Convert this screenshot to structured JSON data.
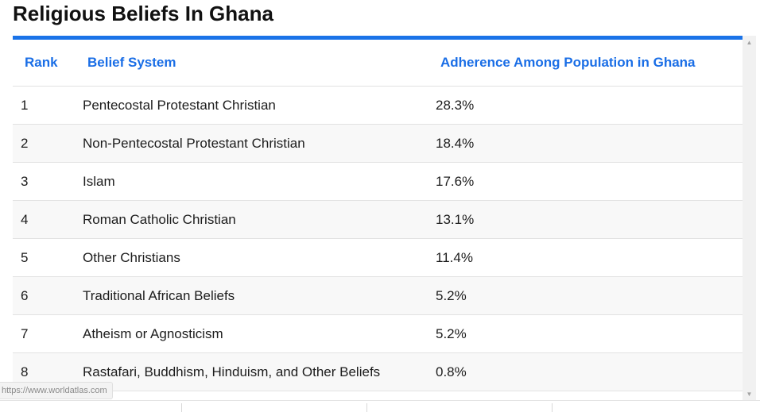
{
  "page": {
    "title": "Religious Beliefs In Ghana"
  },
  "table": {
    "headers": {
      "rank": "Rank",
      "belief": "Belief System",
      "adherence": "Adherence Among Population in Ghana"
    },
    "rows": [
      {
        "rank": "1",
        "belief": "Pentecostal Protestant Christian",
        "adherence": "28.3%"
      },
      {
        "rank": "2",
        "belief": "Non-Pentecostal Protestant Christian",
        "adherence": "18.4%"
      },
      {
        "rank": "3",
        "belief": "Islam",
        "adherence": "17.6%"
      },
      {
        "rank": "4",
        "belief": "Roman Catholic Christian",
        "adherence": "13.1%"
      },
      {
        "rank": "5",
        "belief": "Other Christians",
        "adherence": "11.4%"
      },
      {
        "rank": "6",
        "belief": "Traditional African Beliefs",
        "adherence": "5.2%"
      },
      {
        "rank": "7",
        "belief": "Atheism or Agnosticism",
        "adherence": "5.2%"
      },
      {
        "rank": "8",
        "belief": "Rastafari, Buddhism, Hinduism, and Other Beliefs",
        "adherence": "0.8%"
      }
    ]
  },
  "status_bar": {
    "url": "https://www.worldatlas.com"
  },
  "scrollbar": {
    "up_icon": "▲",
    "down_icon": "▼"
  },
  "colors": {
    "accent": "#1a73e8",
    "header_text": "#1a6ee6",
    "row_alt": "#f8f8f8"
  }
}
